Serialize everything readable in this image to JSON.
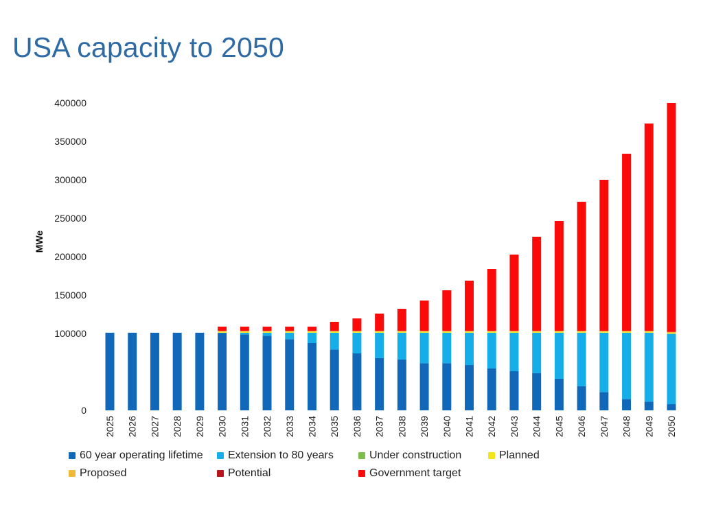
{
  "slide": {
    "title": "USA capacity to 2050"
  },
  "chart_data": {
    "type": "bar",
    "stacked": true,
    "title": "USA capacity to 2050",
    "xlabel": "",
    "ylabel": "MWe",
    "ylim": [
      0,
      400000
    ],
    "yticks": [
      "0",
      "100000",
      "150000",
      "200000",
      "250000",
      "300000",
      "350000",
      "400000"
    ],
    "ytick_values": [
      0,
      100000,
      150000,
      200000,
      250000,
      300000,
      350000,
      400000
    ],
    "grid": false,
    "legend_position": "bottom",
    "categories": [
      "2025",
      "2026",
      "2027",
      "2028",
      "2029",
      "2030",
      "2031",
      "2032",
      "2033",
      "2034",
      "2035",
      "2036",
      "2037",
      "2038",
      "2039",
      "2040",
      "2041",
      "2042",
      "2043",
      "2044",
      "2045",
      "2046",
      "2047",
      "2048",
      "2049",
      "2050"
    ],
    "series": [
      {
        "name": "60 year operating lifetime",
        "color": "#1168b8",
        "values": [
          101000,
          101000,
          101000,
          101000,
          101000,
          100900,
          98800,
          97000,
          92600,
          87500,
          79200,
          74100,
          68100,
          66100,
          61300,
          61300,
          58900,
          54500,
          50900,
          48500,
          41100,
          31300,
          23800,
          14600,
          11300,
          8000
        ]
      },
      {
        "name": "Extension to 80 years",
        "color": "#16aee8",
        "values": [
          0,
          0,
          0,
          0,
          0,
          100,
          2200,
          4000,
          8400,
          13500,
          21800,
          26900,
          32900,
          34900,
          39700,
          39700,
          42100,
          46500,
          50100,
          52500,
          59900,
          69700,
          77200,
          86400,
          89700,
          91500
        ]
      },
      {
        "name": "Under construction",
        "color": "#7dbd4a",
        "values": [
          0,
          0,
          0,
          0,
          0,
          0,
          0,
          0,
          0,
          0,
          0,
          0,
          0,
          0,
          0,
          0,
          0,
          0,
          0,
          0,
          0,
          0,
          0,
          0,
          0,
          0
        ]
      },
      {
        "name": "Planned",
        "color": "#f2e51a",
        "values": [
          0,
          0,
          0,
          0,
          0,
          1100,
          1100,
          1100,
          1100,
          1100,
          1100,
          1100,
          1100,
          1100,
          1100,
          1100,
          1100,
          1100,
          1100,
          1100,
          1100,
          1100,
          1100,
          1100,
          1100,
          1100
        ]
      },
      {
        "name": "Proposed",
        "color": "#f0b93a",
        "values": [
          0,
          0,
          0,
          0,
          0,
          1400,
          1400,
          1400,
          1400,
          1400,
          1400,
          1400,
          1400,
          1400,
          1400,
          1400,
          1400,
          1400,
          1400,
          1400,
          1400,
          1400,
          1400,
          1400,
          1400,
          1400
        ]
      },
      {
        "name": "Potential",
        "color": "#b8141c",
        "values": [
          0,
          0,
          0,
          0,
          0,
          0,
          0,
          0,
          0,
          0,
          0,
          0,
          0,
          0,
          0,
          0,
          0,
          0,
          0,
          0,
          0,
          0,
          0,
          0,
          0,
          0
        ]
      },
      {
        "name": "Government target",
        "color": "#fb0a0a",
        "values": [
          0,
          0,
          0,
          0,
          0,
          5400,
          5400,
          5400,
          5400,
          5400,
          11700,
          16100,
          22400,
          28600,
          39400,
          52700,
          65250,
          80400,
          99200,
          122400,
          142900,
          167900,
          196500,
          230400,
          269700,
          298000
        ]
      }
    ]
  }
}
